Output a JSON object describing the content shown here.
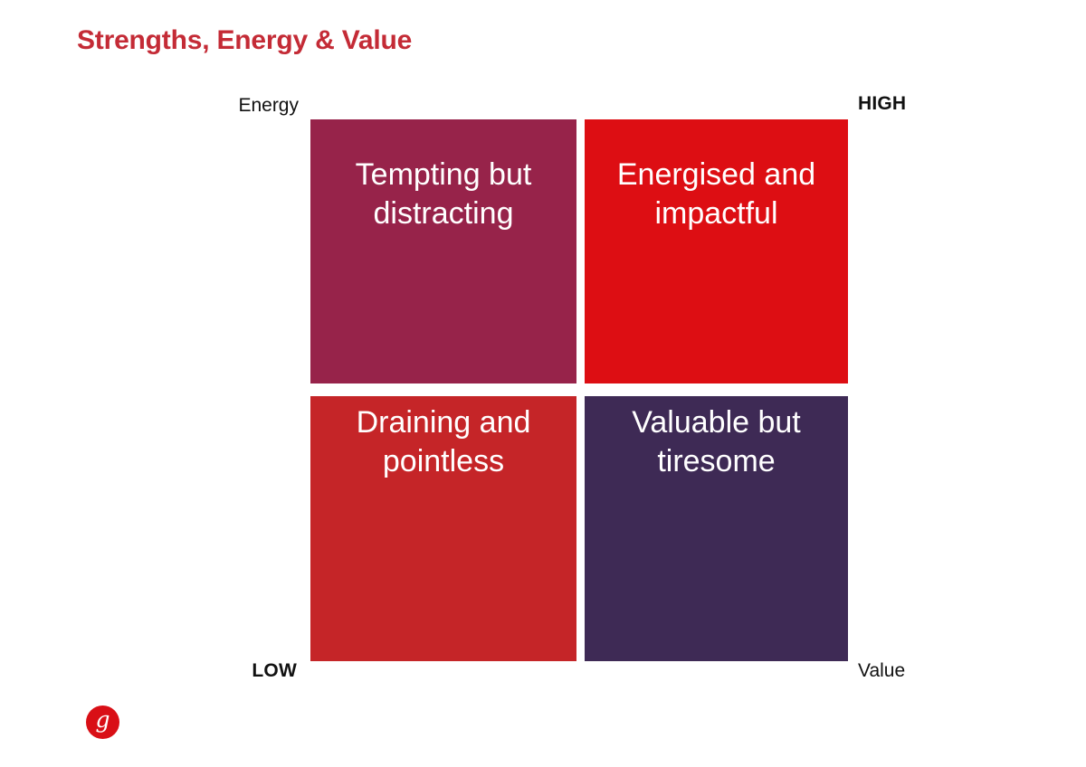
{
  "slide": {
    "title": "Strengths, Energy & Value"
  },
  "matrix": {
    "y_axis_label": "Energy",
    "x_axis_label": "Value",
    "high_label": "HIGH",
    "low_label": "LOW",
    "quadrants": [
      {
        "position": "top-left",
        "meaning": "high energy, low value",
        "lines": [
          "Tempting but",
          "distracting"
        ],
        "color": "#97234a"
      },
      {
        "position": "top-right",
        "meaning": "high energy, high value",
        "lines": [
          "Energised and",
          "impactful"
        ],
        "color": "#dd0e13"
      },
      {
        "position": "bottom-left",
        "meaning": "low energy, low value",
        "lines": [
          "Draining and",
          "pointless"
        ],
        "color": "#c52528"
      },
      {
        "position": "bottom-right",
        "meaning": "low energy, high value",
        "lines": [
          "Valuable but",
          "tiresome"
        ],
        "color": "#3e2a55"
      }
    ]
  },
  "branding": {
    "logo_letter": "g",
    "logo_color": "#d90f16"
  },
  "colors": {
    "title": "#c42b36",
    "label_text": "#111111",
    "quadrant_text": "#ffffff"
  }
}
